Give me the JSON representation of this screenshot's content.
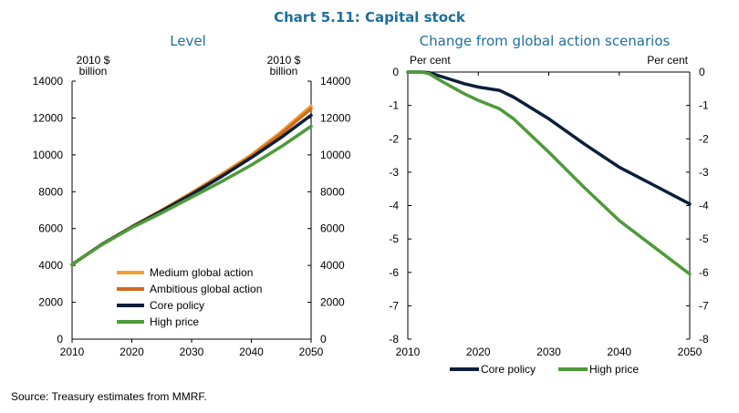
{
  "figure": {
    "title": "Chart 5.11: Capital stock",
    "source": "Source: Treasury estimates from MMRF.",
    "title_color": "#1F6E9C"
  },
  "chart_data": [
    {
      "type": "line",
      "title": "Level",
      "left_unit": [
        "2010 $",
        "billion"
      ],
      "right_unit": [
        "2010 $",
        "billion"
      ],
      "xlim": [
        2010,
        2050
      ],
      "ylim": [
        0,
        14000
      ],
      "x_ticks": [
        2010,
        2020,
        2030,
        2040,
        2050
      ],
      "y_ticks": [
        0,
        2000,
        4000,
        6000,
        8000,
        10000,
        12000,
        14000
      ],
      "grid": false,
      "legend": "bottom-right",
      "x": [
        2010,
        2015,
        2020,
        2025,
        2030,
        2035,
        2040,
        2045,
        2050
      ],
      "series": [
        {
          "name": "Medium global action",
          "color": "#F0A030",
          "values": [
            4050,
            5150,
            6100,
            7000,
            7950,
            8950,
            10000,
            11250,
            12650
          ]
        },
        {
          "name": "Ambitious global action",
          "color": "#D2691E",
          "values": [
            4050,
            5150,
            6100,
            6980,
            7900,
            8880,
            9920,
            11150,
            12500
          ]
        },
        {
          "name": "Core policy",
          "color": "#0B1F3A",
          "values": [
            4050,
            5150,
            6080,
            6950,
            7860,
            8820,
            9850,
            10950,
            12150
          ]
        },
        {
          "name": "High price",
          "color": "#4E9A3A",
          "values": [
            4050,
            5130,
            6050,
            6850,
            7700,
            8550,
            9450,
            10450,
            11550
          ]
        }
      ]
    },
    {
      "type": "line",
      "title": "Change from global action scenarios",
      "left_unit": [
        "Per cent"
      ],
      "right_unit": [
        "Per cent"
      ],
      "xlim": [
        2010,
        2050
      ],
      "ylim": [
        -8,
        0
      ],
      "x_ticks": [
        2010,
        2020,
        2030,
        2040,
        2050
      ],
      "y_ticks": [
        0,
        -1,
        -2,
        -3,
        -4,
        -5,
        -6,
        -7,
        -8
      ],
      "grid": false,
      "legend": "bottom",
      "x": [
        2010,
        2012,
        2013,
        2015,
        2018,
        2020,
        2023,
        2025,
        2030,
        2035,
        2040,
        2045,
        2050
      ],
      "series": [
        {
          "name": "Core policy",
          "color": "#0B1F3A",
          "values": [
            0,
            0,
            -0.02,
            -0.15,
            -0.35,
            -0.45,
            -0.55,
            -0.75,
            -1.4,
            -2.15,
            -2.85,
            -3.4,
            -3.95
          ]
        },
        {
          "name": "High price",
          "color": "#4E9A3A",
          "values": [
            0,
            0,
            -0.05,
            -0.3,
            -0.65,
            -0.85,
            -1.1,
            -1.4,
            -2.4,
            -3.45,
            -4.45,
            -5.25,
            -6.05
          ]
        }
      ]
    }
  ]
}
